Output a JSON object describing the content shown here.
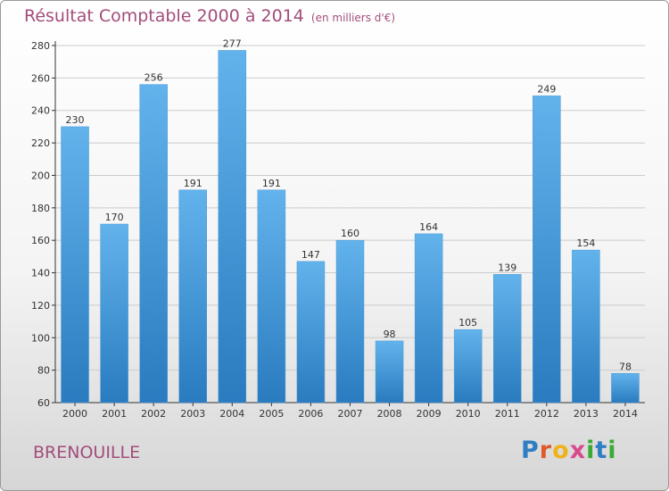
{
  "header": {
    "title": "Résultat Comptable 2000 à 2014",
    "subtitle": "(en milliers d'€)"
  },
  "footer": {
    "commune": "BRENOUILLE",
    "logo": "Proxiti"
  },
  "colors": {
    "title": "#a34d7b",
    "bar_top": "#62b3ec",
    "bar_bottom": "#2a7bbf",
    "grid": "#cccccc",
    "axis": "#333333"
  },
  "chart_data": {
    "type": "bar",
    "title": "Résultat Comptable 2000 à 2014",
    "xlabel": "",
    "ylabel": "",
    "ylim": [
      60,
      280
    ],
    "yticks": [
      60,
      80,
      100,
      120,
      140,
      160,
      180,
      200,
      220,
      240,
      260,
      280
    ],
    "grid": true,
    "categories": [
      "2000",
      "2001",
      "2002",
      "2003",
      "2004",
      "2005",
      "2006",
      "2007",
      "2008",
      "2009",
      "2010",
      "2011",
      "2012",
      "2013",
      "2014"
    ],
    "values": [
      230,
      170,
      256,
      191,
      277,
      191,
      147,
      160,
      98,
      164,
      105,
      139,
      249,
      154,
      78
    ]
  }
}
